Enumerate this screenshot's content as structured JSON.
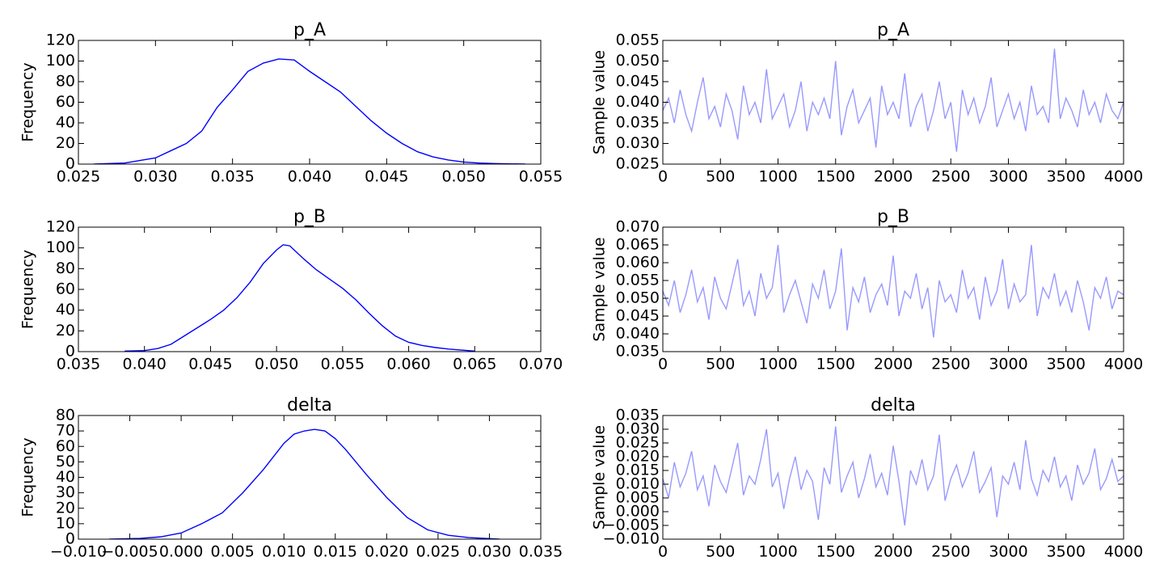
{
  "chart_data": [
    {
      "type": "line",
      "title": "p_A",
      "ylabel": "Frequency",
      "color": "#0000ff",
      "x": [
        0.026,
        0.028,
        0.03,
        0.031,
        0.032,
        0.033,
        0.034,
        0.035,
        0.036,
        0.037,
        0.038,
        0.039,
        0.04,
        0.041,
        0.042,
        0.043,
        0.044,
        0.045,
        0.046,
        0.047,
        0.048,
        0.049,
        0.05,
        0.051,
        0.052,
        0.054
      ],
      "values": [
        0,
        1,
        6,
        13,
        20,
        32,
        55,
        72,
        90,
        98,
        102,
        101,
        90,
        80,
        70,
        56,
        42,
        30,
        20,
        12,
        7,
        4,
        2,
        1,
        0.5,
        0
      ],
      "xlim": [
        0.025,
        0.055
      ],
      "xticks": [
        {
          "value": 0.025,
          "label": "0.025"
        },
        {
          "value": 0.03,
          "label": "0.030"
        },
        {
          "value": 0.035,
          "label": "0.035"
        },
        {
          "value": 0.04,
          "label": "0.040"
        },
        {
          "value": 0.045,
          "label": "0.045"
        },
        {
          "value": 0.05,
          "label": "0.050"
        },
        {
          "value": 0.055,
          "label": "0.055"
        }
      ],
      "ylim": [
        0,
        120
      ],
      "yticks": [
        0,
        20,
        40,
        60,
        80,
        100,
        120
      ]
    },
    {
      "type": "line",
      "title": "p_A",
      "ylabel": "Sample value",
      "color": "#9999ff",
      "x": [
        0,
        50,
        100,
        150,
        200,
        250,
        300,
        350,
        400,
        450,
        500,
        550,
        600,
        650,
        700,
        750,
        800,
        850,
        900,
        950,
        1000,
        1050,
        1100,
        1150,
        1200,
        1250,
        1300,
        1350,
        1400,
        1450,
        1500,
        1550,
        1600,
        1650,
        1700,
        1750,
        1800,
        1850,
        1900,
        1950,
        2000,
        2050,
        2100,
        2150,
        2200,
        2250,
        2300,
        2350,
        2400,
        2450,
        2500,
        2550,
        2600,
        2650,
        2700,
        2750,
        2800,
        2850,
        2900,
        2950,
        3000,
        3050,
        3100,
        3150,
        3200,
        3250,
        3300,
        3350,
        3400,
        3450,
        3500,
        3550,
        3600,
        3650,
        3700,
        3750,
        3800,
        3850,
        3900,
        3950,
        4000
      ],
      "values": [
        0.038,
        0.041,
        0.035,
        0.043,
        0.037,
        0.033,
        0.04,
        0.046,
        0.036,
        0.039,
        0.034,
        0.042,
        0.038,
        0.031,
        0.044,
        0.037,
        0.04,
        0.035,
        0.048,
        0.036,
        0.039,
        0.042,
        0.034,
        0.038,
        0.045,
        0.033,
        0.04,
        0.037,
        0.041,
        0.036,
        0.05,
        0.032,
        0.039,
        0.043,
        0.035,
        0.038,
        0.041,
        0.029,
        0.044,
        0.037,
        0.04,
        0.036,
        0.047,
        0.034,
        0.039,
        0.042,
        0.033,
        0.038,
        0.045,
        0.036,
        0.04,
        0.028,
        0.043,
        0.037,
        0.041,
        0.035,
        0.039,
        0.046,
        0.034,
        0.038,
        0.042,
        0.036,
        0.04,
        0.033,
        0.044,
        0.037,
        0.039,
        0.035,
        0.053,
        0.036,
        0.041,
        0.038,
        0.034,
        0.043,
        0.037,
        0.04,
        0.035,
        0.042,
        0.038,
        0.036,
        0.04
      ],
      "xlim": [
        0,
        4000
      ],
      "xticks": [
        0,
        500,
        1000,
        1500,
        2000,
        2500,
        3000,
        3500,
        4000
      ],
      "ylim": [
        0.025,
        0.055
      ],
      "yticks": [
        {
          "value": 0.025,
          "label": "0.025"
        },
        {
          "value": 0.03,
          "label": "0.030"
        },
        {
          "value": 0.035,
          "label": "0.035"
        },
        {
          "value": 0.04,
          "label": "0.040"
        },
        {
          "value": 0.045,
          "label": "0.045"
        },
        {
          "value": 0.05,
          "label": "0.050"
        },
        {
          "value": 0.055,
          "label": "0.055"
        }
      ]
    },
    {
      "type": "line",
      "title": "p_B",
      "ylabel": "Frequency",
      "color": "#0000ff",
      "x": [
        0.0385,
        0.04,
        0.041,
        0.042,
        0.043,
        0.044,
        0.045,
        0.046,
        0.047,
        0.048,
        0.049,
        0.05,
        0.0505,
        0.051,
        0.052,
        0.053,
        0.054,
        0.055,
        0.056,
        0.057,
        0.058,
        0.059,
        0.06,
        0.061,
        0.062,
        0.063,
        0.064,
        0.065
      ],
      "values": [
        0.5,
        1,
        3,
        7,
        15,
        23,
        31,
        40,
        52,
        67,
        85,
        98,
        103,
        102,
        90,
        79,
        70,
        61,
        50,
        37,
        25,
        15,
        9,
        6,
        4,
        2.5,
        1.5,
        0.5
      ],
      "xlim": [
        0.035,
        0.07
      ],
      "xticks": [
        {
          "value": 0.035,
          "label": "0.035"
        },
        {
          "value": 0.04,
          "label": "0.040"
        },
        {
          "value": 0.045,
          "label": "0.045"
        },
        {
          "value": 0.05,
          "label": "0.050"
        },
        {
          "value": 0.055,
          "label": "0.055"
        },
        {
          "value": 0.06,
          "label": "0.060"
        },
        {
          "value": 0.065,
          "label": "0.065"
        },
        {
          "value": 0.07,
          "label": "0.070"
        }
      ],
      "ylim": [
        0,
        120
      ],
      "yticks": [
        0,
        20,
        40,
        60,
        80,
        100,
        120
      ]
    },
    {
      "type": "line",
      "title": "p_B",
      "ylabel": "Sample value",
      "color": "#9999ff",
      "x": [
        0,
        50,
        100,
        150,
        200,
        250,
        300,
        350,
        400,
        450,
        500,
        550,
        600,
        650,
        700,
        750,
        800,
        850,
        900,
        950,
        1000,
        1050,
        1100,
        1150,
        1200,
        1250,
        1300,
        1350,
        1400,
        1450,
        1500,
        1550,
        1600,
        1650,
        1700,
        1750,
        1800,
        1850,
        1900,
        1950,
        2000,
        2050,
        2100,
        2150,
        2200,
        2250,
        2300,
        2350,
        2400,
        2450,
        2500,
        2550,
        2600,
        2650,
        2700,
        2750,
        2800,
        2850,
        2900,
        2950,
        3000,
        3050,
        3100,
        3150,
        3200,
        3250,
        3300,
        3350,
        3400,
        3450,
        3500,
        3550,
        3600,
        3650,
        3700,
        3750,
        3800,
        3850,
        3900,
        3950,
        4000
      ],
      "values": [
        0.052,
        0.048,
        0.055,
        0.046,
        0.051,
        0.058,
        0.049,
        0.053,
        0.044,
        0.056,
        0.05,
        0.047,
        0.054,
        0.061,
        0.048,
        0.052,
        0.045,
        0.057,
        0.05,
        0.053,
        0.065,
        0.046,
        0.051,
        0.055,
        0.049,
        0.043,
        0.054,
        0.05,
        0.058,
        0.047,
        0.052,
        0.064,
        0.041,
        0.053,
        0.049,
        0.056,
        0.046,
        0.051,
        0.054,
        0.048,
        0.062,
        0.045,
        0.052,
        0.05,
        0.057,
        0.047,
        0.053,
        0.039,
        0.055,
        0.049,
        0.051,
        0.046,
        0.058,
        0.05,
        0.053,
        0.044,
        0.056,
        0.048,
        0.052,
        0.061,
        0.047,
        0.054,
        0.049,
        0.051,
        0.065,
        0.045,
        0.053,
        0.05,
        0.057,
        0.048,
        0.052,
        0.046,
        0.055,
        0.049,
        0.041,
        0.053,
        0.05,
        0.056,
        0.047,
        0.052,
        0.051
      ],
      "xlim": [
        0,
        4000
      ],
      "xticks": [
        0,
        500,
        1000,
        1500,
        2000,
        2500,
        3000,
        3500,
        4000
      ],
      "ylim": [
        0.035,
        0.07
      ],
      "yticks": [
        {
          "value": 0.035,
          "label": "0.035"
        },
        {
          "value": 0.04,
          "label": "0.040"
        },
        {
          "value": 0.045,
          "label": "0.045"
        },
        {
          "value": 0.05,
          "label": "0.050"
        },
        {
          "value": 0.055,
          "label": "0.055"
        },
        {
          "value": 0.06,
          "label": "0.060"
        },
        {
          "value": 0.065,
          "label": "0.065"
        },
        {
          "value": 0.07,
          "label": "0.070"
        }
      ]
    },
    {
      "type": "line",
      "title": "delta",
      "ylabel": "Frequency",
      "color": "#0000ff",
      "x": [
        -0.007,
        -0.004,
        -0.002,
        0.0,
        0.002,
        0.004,
        0.006,
        0.008,
        0.01,
        0.011,
        0.012,
        0.013,
        0.014,
        0.015,
        0.016,
        0.018,
        0.02,
        0.022,
        0.024,
        0.026,
        0.028,
        0.031
      ],
      "values": [
        0,
        0.5,
        1.5,
        4,
        10,
        17,
        30,
        45,
        62,
        68,
        70,
        71,
        70,
        65,
        58,
        42,
        27,
        14,
        6,
        2.5,
        1,
        0
      ],
      "xlim": [
        -0.01,
        0.035
      ],
      "xticks": [
        {
          "value": -0.01,
          "label": "−0.010"
        },
        {
          "value": -0.005,
          "label": "−0.005"
        },
        {
          "value": 0,
          "label": "0.000"
        },
        {
          "value": 0.005,
          "label": "0.005"
        },
        {
          "value": 0.01,
          "label": "0.010"
        },
        {
          "value": 0.015,
          "label": "0.015"
        },
        {
          "value": 0.02,
          "label": "0.020"
        },
        {
          "value": 0.025,
          "label": "0.025"
        },
        {
          "value": 0.03,
          "label": "0.030"
        },
        {
          "value": 0.035,
          "label": "0.035"
        }
      ],
      "ylim": [
        0,
        80
      ],
      "yticks": [
        0,
        10,
        20,
        30,
        40,
        50,
        60,
        70,
        80
      ]
    },
    {
      "type": "line",
      "title": "delta",
      "ylabel": "Sample value",
      "color": "#9999ff",
      "x": [
        0,
        50,
        100,
        150,
        200,
        250,
        300,
        350,
        400,
        450,
        500,
        550,
        600,
        650,
        700,
        750,
        800,
        850,
        900,
        950,
        1000,
        1050,
        1100,
        1150,
        1200,
        1250,
        1300,
        1350,
        1400,
        1450,
        1500,
        1550,
        1600,
        1650,
        1700,
        1750,
        1800,
        1850,
        1900,
        1950,
        2000,
        2050,
        2100,
        2150,
        2200,
        2250,
        2300,
        2350,
        2400,
        2450,
        2500,
        2550,
        2600,
        2650,
        2700,
        2750,
        2800,
        2850,
        2900,
        2950,
        3000,
        3050,
        3100,
        3150,
        3200,
        3250,
        3300,
        3350,
        3400,
        3450,
        3500,
        3550,
        3600,
        3650,
        3700,
        3750,
        3800,
        3850,
        3900,
        3950,
        4000
      ],
      "values": [
        0.012,
        0.005,
        0.018,
        0.009,
        0.014,
        0.022,
        0.008,
        0.013,
        0.002,
        0.017,
        0.011,
        0.007,
        0.016,
        0.025,
        0.006,
        0.013,
        0.01,
        0.019,
        0.03,
        0.009,
        0.014,
        0.001,
        0.012,
        0.02,
        0.008,
        0.015,
        0.011,
        -0.003,
        0.016,
        0.01,
        0.031,
        0.007,
        0.013,
        0.018,
        0.005,
        0.012,
        0.021,
        0.009,
        0.014,
        0.006,
        0.024,
        0.011,
        -0.005,
        0.015,
        0.01,
        0.019,
        0.008,
        0.013,
        0.028,
        0.004,
        0.012,
        0.017,
        0.009,
        0.014,
        0.022,
        0.007,
        0.011,
        0.016,
        -0.002,
        0.013,
        0.01,
        0.018,
        0.008,
        0.026,
        0.012,
        0.006,
        0.015,
        0.011,
        0.02,
        0.009,
        0.013,
        0.004,
        0.017,
        0.01,
        0.014,
        0.023,
        0.008,
        0.012,
        0.019,
        0.011,
        0.013
      ],
      "xlim": [
        0,
        4000
      ],
      "xticks": [
        0,
        500,
        1000,
        1500,
        2000,
        2500,
        3000,
        3500,
        4000
      ],
      "ylim": [
        -0.01,
        0.035
      ],
      "yticks": [
        {
          "value": -0.01,
          "label": "−0.010"
        },
        {
          "value": -0.005,
          "label": "−0.005"
        },
        {
          "value": 0,
          "label": "0.000"
        },
        {
          "value": 0.005,
          "label": "0.005"
        },
        {
          "value": 0.01,
          "label": "0.010"
        },
        {
          "value": 0.015,
          "label": "0.015"
        },
        {
          "value": 0.02,
          "label": "0.020"
        },
        {
          "value": 0.025,
          "label": "0.025"
        },
        {
          "value": 0.03,
          "label": "0.030"
        },
        {
          "value": 0.035,
          "label": "0.035"
        }
      ]
    }
  ]
}
